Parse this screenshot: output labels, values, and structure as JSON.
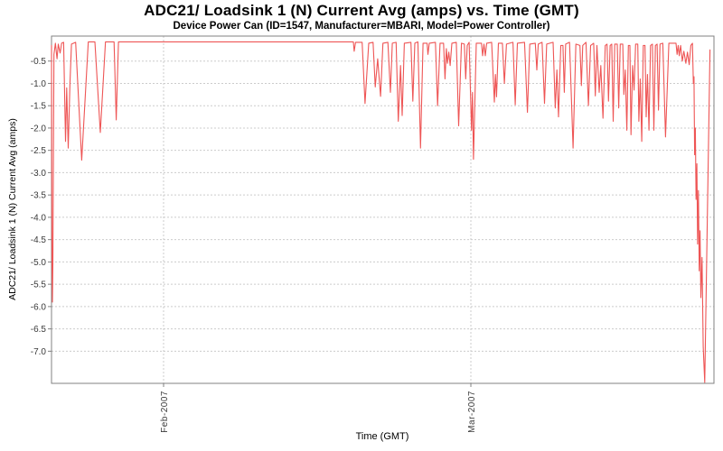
{
  "page": {
    "background": "#ffffff"
  },
  "chart_data": {
    "type": "line",
    "title": "ADC21/ Loadsink 1 (N) Current Avg (amps) vs. Time (GMT)",
    "subtitle": "Device Power Can (ID=1547, Manufacturer=MBARI, Model=Power Controller)",
    "xlabel": "Time (GMT)",
    "ylabel": "ADC21/ Loadsink 1 (N) Current Avg (amps)",
    "legend": "none",
    "grid": "dashed",
    "colors": {
      "line": "#ee5555",
      "grid": "#cccccc",
      "plot_border": "#808080",
      "tick_text": "#3a3a3a",
      "title_text": "#000000"
    },
    "x_axis": {
      "unit": "days since chart start (approx 2007-01-21)",
      "range": [
        0,
        60.36
      ],
      "ticks": [
        {
          "label": "Feb-2007",
          "day": 10.21
        },
        {
          "label": "Mar-2007",
          "day": 38.21
        }
      ]
    },
    "y_axis": {
      "range_top": 0.06,
      "range_bottom": -7.72,
      "ticks": [
        {
          "label": "-0.5",
          "value": -0.5
        },
        {
          "label": "-1.0",
          "value": -1.0
        },
        {
          "label": "-1.5",
          "value": -1.5
        },
        {
          "label": "-2.0",
          "value": -2.0
        },
        {
          "label": "-2.5",
          "value": -2.5
        },
        {
          "label": "-3.0",
          "value": -3.0
        },
        {
          "label": "-3.5",
          "value": -3.5
        },
        {
          "label": "-4.0",
          "value": -4.0
        },
        {
          "label": "-4.5",
          "value": -4.5
        },
        {
          "label": "-5.0",
          "value": -5.0
        },
        {
          "label": "-5.5",
          "value": -5.5
        },
        {
          "label": "-6.0",
          "value": -6.0
        },
        {
          "label": "-6.5",
          "value": -6.5
        },
        {
          "label": "-7.0",
          "value": -7.0
        }
      ]
    },
    "points": [
      [
        0.0,
        -0.15
      ],
      [
        0.04,
        -5.0
      ],
      [
        0.08,
        -5.9
      ],
      [
        0.12,
        -5.0
      ],
      [
        0.22,
        -0.35
      ],
      [
        0.35,
        -0.1
      ],
      [
        0.5,
        -0.45
      ],
      [
        0.62,
        -0.12
      ],
      [
        0.78,
        -0.32
      ],
      [
        0.92,
        -0.1
      ],
      [
        1.1,
        -0.08
      ],
      [
        1.28,
        -2.3
      ],
      [
        1.38,
        -1.1
      ],
      [
        1.52,
        -2.45
      ],
      [
        1.68,
        -1.0
      ],
      [
        1.82,
        -0.12
      ],
      [
        2.2,
        -0.08
      ],
      [
        2.75,
        -2.72
      ],
      [
        3.35,
        -0.07
      ],
      [
        3.95,
        -0.07
      ],
      [
        4.45,
        -2.1
      ],
      [
        4.92,
        -0.07
      ],
      [
        5.7,
        -0.07
      ],
      [
        5.9,
        -1.82
      ],
      [
        6.1,
        -0.07
      ],
      [
        6.4,
        -0.07
      ],
      [
        27.5,
        -0.07
      ],
      [
        27.58,
        -0.28
      ],
      [
        27.7,
        -0.08
      ],
      [
        28.3,
        -0.08
      ],
      [
        28.57,
        -1.45
      ],
      [
        28.9,
        -0.1
      ],
      [
        29.3,
        -0.08
      ],
      [
        29.5,
        -1.08
      ],
      [
        29.72,
        -0.45
      ],
      [
        29.98,
        -1.29
      ],
      [
        30.2,
        -0.1
      ],
      [
        30.65,
        -0.08
      ],
      [
        30.88,
        -1.2
      ],
      [
        31.05,
        -0.1
      ],
      [
        31.4,
        -0.08
      ],
      [
        31.6,
        -1.85
      ],
      [
        31.8,
        -0.6
      ],
      [
        31.95,
        -1.72
      ],
      [
        32.15,
        -0.1
      ],
      [
        32.75,
        -0.08
      ],
      [
        32.92,
        -1.4
      ],
      [
        33.1,
        -0.1
      ],
      [
        33.38,
        -0.07
      ],
      [
        33.62,
        -2.45
      ],
      [
        33.85,
        -0.1
      ],
      [
        34.22,
        -0.1
      ],
      [
        34.3,
        -0.35
      ],
      [
        34.42,
        -0.1
      ],
      [
        34.98,
        -0.08
      ],
      [
        35.18,
        -1.5
      ],
      [
        35.4,
        -0.1
      ],
      [
        35.72,
        -0.1
      ],
      [
        35.85,
        -0.9
      ],
      [
        35.98,
        -0.22
      ],
      [
        36.08,
        -0.55
      ],
      [
        36.2,
        -0.3
      ],
      [
        36.32,
        -0.6
      ],
      [
        36.48,
        -0.1
      ],
      [
        36.88,
        -0.08
      ],
      [
        37.1,
        -1.95
      ],
      [
        37.35,
        -0.1
      ],
      [
        37.62,
        -0.12
      ],
      [
        37.74,
        -0.9
      ],
      [
        37.88,
        -0.15
      ],
      [
        38.05,
        -0.08
      ],
      [
        38.27,
        -2.05
      ],
      [
        38.36,
        -1.2
      ],
      [
        38.45,
        -2.7
      ],
      [
        38.7,
        -0.1
      ],
      [
        39.18,
        -0.1
      ],
      [
        39.28,
        -0.38
      ],
      [
        39.4,
        -0.12
      ],
      [
        39.53,
        -0.38
      ],
      [
        39.65,
        -0.1
      ],
      [
        40.1,
        -0.08
      ],
      [
        40.35,
        -1.42
      ],
      [
        40.45,
        -0.8
      ],
      [
        40.55,
        -1.3
      ],
      [
        40.72,
        -0.1
      ],
      [
        41.08,
        -0.1
      ],
      [
        41.26,
        -1.0
      ],
      [
        41.45,
        -0.12
      ],
      [
        42.05,
        -0.08
      ],
      [
        42.25,
        -1.48
      ],
      [
        42.45,
        -0.1
      ],
      [
        43.1,
        -0.08
      ],
      [
        43.36,
        -1.65
      ],
      [
        43.58,
        -0.12
      ],
      [
        44.08,
        -0.1
      ],
      [
        44.22,
        -0.7
      ],
      [
        44.35,
        -0.12
      ],
      [
        44.7,
        -0.08
      ],
      [
        44.92,
        -1.45
      ],
      [
        45.12,
        -0.12
      ],
      [
        45.7,
        -0.08
      ],
      [
        45.9,
        -1.55
      ],
      [
        46.05,
        -0.7
      ],
      [
        46.2,
        -1.75
      ],
      [
        46.4,
        -0.15
      ],
      [
        46.6,
        -0.15
      ],
      [
        46.72,
        -1.2
      ],
      [
        46.85,
        -0.12
      ],
      [
        47.2,
        -0.08
      ],
      [
        47.52,
        -2.45
      ],
      [
        47.78,
        -0.12
      ],
      [
        48.15,
        -0.15
      ],
      [
        48.28,
        -1.05
      ],
      [
        48.4,
        -0.15
      ],
      [
        48.7,
        -0.08
      ],
      [
        48.92,
        -1.5
      ],
      [
        49.12,
        -0.15
      ],
      [
        49.4,
        -0.1
      ],
      [
        49.55,
        -1.28
      ],
      [
        49.7,
        -0.15
      ],
      [
        49.9,
        -1.2
      ],
      [
        50.05,
        -0.6
      ],
      [
        50.25,
        -1.78
      ],
      [
        50.45,
        -0.15
      ],
      [
        50.62,
        -0.12
      ],
      [
        50.75,
        -1.4
      ],
      [
        50.9,
        -0.15
      ],
      [
        51.05,
        -0.12
      ],
      [
        51.18,
        -1.85
      ],
      [
        51.32,
        -0.12
      ],
      [
        51.55,
        -0.12
      ],
      [
        51.68,
        -1.55
      ],
      [
        51.82,
        -0.12
      ],
      [
        52.05,
        -0.12
      ],
      [
        52.15,
        -1.25
      ],
      [
        52.28,
        -0.7
      ],
      [
        52.42,
        -2.05
      ],
      [
        52.56,
        -0.15
      ],
      [
        52.7,
        -0.15
      ],
      [
        52.8,
        -2.15
      ],
      [
        52.95,
        -0.6
      ],
      [
        53.08,
        -1.15
      ],
      [
        53.22,
        -0.12
      ],
      [
        53.42,
        -0.12
      ],
      [
        53.52,
        -1.85
      ],
      [
        53.64,
        -0.9
      ],
      [
        53.78,
        -2.3
      ],
      [
        53.92,
        -0.15
      ],
      [
        54.08,
        -0.15
      ],
      [
        54.18,
        -1.75
      ],
      [
        54.3,
        -0.8
      ],
      [
        54.44,
        -2.05
      ],
      [
        54.58,
        -0.15
      ],
      [
        54.75,
        -0.12
      ],
      [
        54.88,
        -2.05
      ],
      [
        55.02,
        -0.15
      ],
      [
        55.18,
        -0.12
      ],
      [
        55.3,
        -1.6
      ],
      [
        55.44,
        -0.12
      ],
      [
        55.7,
        -0.1
      ],
      [
        55.95,
        -2.2
      ],
      [
        56.25,
        -0.1
      ],
      [
        56.9,
        -0.1
      ],
      [
        57.0,
        -0.35
      ],
      [
        57.1,
        -0.15
      ],
      [
        57.2,
        -0.38
      ],
      [
        57.32,
        -0.15
      ],
      [
        57.48,
        -0.5
      ],
      [
        57.62,
        -0.28
      ],
      [
        57.8,
        -0.55
      ],
      [
        57.95,
        -0.3
      ],
      [
        58.1,
        -0.58
      ],
      [
        58.25,
        -0.15
      ],
      [
        58.4,
        -0.1
      ],
      [
        58.48,
        -1.0
      ],
      [
        58.54,
        -0.85
      ],
      [
        58.6,
        -2.6
      ],
      [
        58.66,
        -2.0
      ],
      [
        58.73,
        -3.6
      ],
      [
        58.8,
        -2.8
      ],
      [
        58.87,
        -4.6
      ],
      [
        58.94,
        -3.4
      ],
      [
        59.02,
        -5.2
      ],
      [
        59.09,
        -4.3
      ],
      [
        59.17,
        -5.8
      ],
      [
        59.27,
        -4.9
      ],
      [
        59.38,
        -6.9
      ],
      [
        59.52,
        -7.7
      ],
      [
        60.0,
        -0.25
      ]
    ]
  }
}
